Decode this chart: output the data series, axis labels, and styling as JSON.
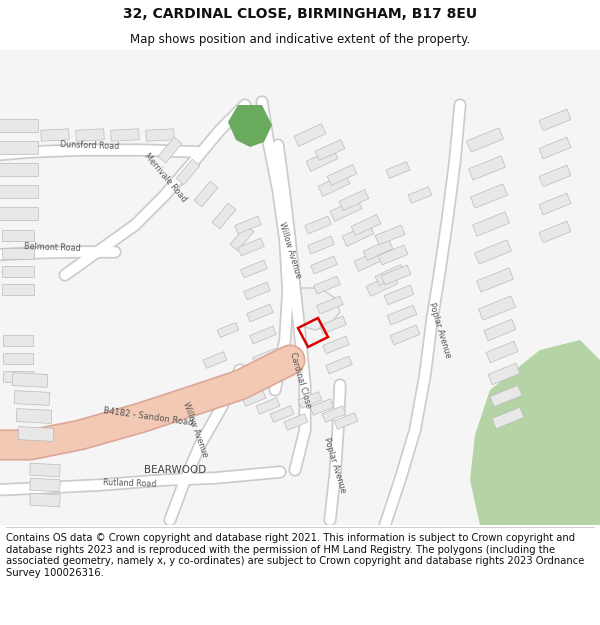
{
  "title": "32, CARDINAL CLOSE, BIRMINGHAM, B17 8EU",
  "subtitle": "Map shows position and indicative extent of the property.",
  "footer": "Contains OS data © Crown copyright and database right 2021. This information is subject to Crown copyright and database rights 2023 and is reproduced with the permission of HM Land Registry. The polygons (including the associated geometry, namely x, y co-ordinates) are subject to Crown copyright and database rights 2023 Ordnance Survey 100026316.",
  "title_fontsize": 10,
  "subtitle_fontsize": 8.5,
  "footer_fontsize": 7.2,
  "map_bg": "#f5f5f5",
  "road_color": "#ffffff",
  "road_outline": "#cccccc",
  "building_color": "#e8e8e8",
  "building_outline": "#bbbbbb",
  "green_marker": "#6aaa5e",
  "green_park": "#b5d4a5",
  "red_box_color": "#dd0000",
  "main_road_color": "#f2c9b5",
  "main_road_outline": "#dda898"
}
